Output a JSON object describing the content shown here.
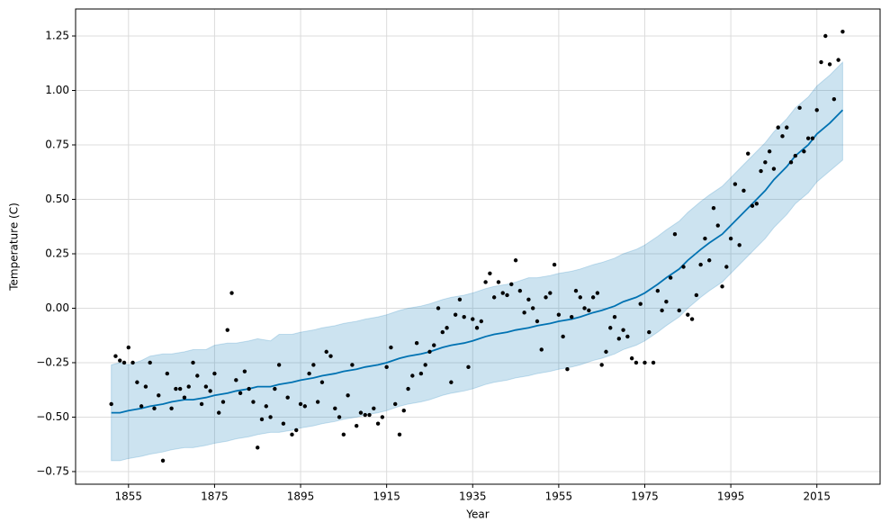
{
  "chart_data": {
    "type": "forecast",
    "xlabel": "Year",
    "ylabel": "Temperature (C)",
    "grid": true,
    "xlim": [
      1842.7,
      2029.7
    ],
    "ylim": [
      -0.808,
      1.374
    ],
    "xticks": [
      1855,
      1875,
      1895,
      1915,
      1935,
      1955,
      1975,
      1995,
      2015
    ],
    "yticks": [
      {
        "value": -0.75,
        "label": "−0.75"
      },
      {
        "value": -0.5,
        "label": "−0.50"
      },
      {
        "value": -0.25,
        "label": "−0.25"
      },
      {
        "value": 0,
        "label": "0.00"
      },
      0.25,
      {
        "value": 0.5,
        "label": "0.50"
      },
      0.75,
      {
        "value": 1,
        "label": "1.00"
      },
      1.25
    ],
    "observed": {
      "color": "#000000",
      "x": [
        1851,
        1852,
        1853,
        1854,
        1855,
        1856,
        1857,
        1858,
        1859,
        1860,
        1861,
        1862,
        1863,
        1864,
        1865,
        1866,
        1867,
        1868,
        1869,
        1870,
        1871,
        1872,
        1873,
        1874,
        1875,
        1876,
        1877,
        1878,
        1879,
        1880,
        1881,
        1882,
        1883,
        1884,
        1885,
        1886,
        1887,
        1888,
        1889,
        1890,
        1891,
        1892,
        1893,
        1894,
        1895,
        1896,
        1897,
        1898,
        1899,
        1900,
        1901,
        1902,
        1903,
        1904,
        1905,
        1906,
        1907,
        1908,
        1909,
        1910,
        1911,
        1912,
        1913,
        1914,
        1915,
        1916,
        1917,
        1918,
        1919,
        1920,
        1921,
        1922,
        1923,
        1924,
        1925,
        1926,
        1927,
        1928,
        1929,
        1930,
        1931,
        1932,
        1933,
        1934,
        1935,
        1936,
        1937,
        1938,
        1939,
        1940,
        1941,
        1942,
        1943,
        1944,
        1945,
        1946,
        1947,
        1948,
        1949,
        1950,
        1951,
        1952,
        1953,
        1954,
        1955,
        1956,
        1957,
        1958,
        1959,
        1960,
        1961,
        1962,
        1963,
        1964,
        1965,
        1966,
        1967,
        1968,
        1969,
        1970,
        1971,
        1972,
        1973,
        1974,
        1975,
        1976,
        1977,
        1978,
        1979,
        1980,
        1981,
        1982,
        1983,
        1984,
        1985,
        1986,
        1987,
        1988,
        1989,
        1990,
        1991,
        1992,
        1993,
        1994,
        1995,
        1996,
        1997,
        1998,
        1999,
        2000,
        2001,
        2002,
        2003,
        2004,
        2005,
        2006,
        2007,
        2008,
        2009,
        2010,
        2011,
        2012,
        2013,
        2014,
        2015,
        2016,
        2017,
        2018,
        2019,
        2020,
        2021
      ],
      "values": [
        -0.44,
        -0.22,
        -0.24,
        -0.25,
        -0.18,
        -0.25,
        -0.34,
        -0.45,
        -0.36,
        -0.25,
        -0.46,
        -0.4,
        -0.7,
        -0.3,
        -0.46,
        -0.37,
        -0.37,
        -0.41,
        -0.36,
        -0.25,
        -0.31,
        -0.44,
        -0.36,
        -0.38,
        -0.3,
        -0.48,
        -0.43,
        -0.1,
        0.07,
        -0.33,
        -0.39,
        -0.29,
        -0.37,
        -0.43,
        -0.64,
        -0.51,
        -0.45,
        -0.5,
        -0.37,
        -0.26,
        -0.53,
        -0.41,
        -0.58,
        -0.56,
        -0.44,
        -0.45,
        -0.3,
        -0.26,
        -0.43,
        -0.34,
        -0.2,
        -0.22,
        -0.46,
        -0.5,
        -0.58,
        -0.4,
        -0.26,
        -0.54,
        -0.48,
        -0.49,
        -0.49,
        -0.46,
        -0.53,
        -0.5,
        -0.27,
        -0.18,
        -0.44,
        -0.58,
        -0.47,
        -0.37,
        -0.31,
        -0.16,
        -0.3,
        -0.26,
        -0.2,
        -0.17,
        0.0,
        -0.11,
        -0.09,
        -0.34,
        -0.03,
        0.04,
        -0.04,
        -0.27,
        -0.05,
        -0.09,
        -0.06,
        0.12,
        0.16,
        0.05,
        0.12,
        0.07,
        0.06,
        0.11,
        0.22,
        0.08,
        -0.02,
        0.04,
        0.0,
        -0.06,
        -0.19,
        0.05,
        0.07,
        0.2,
        -0.03,
        -0.13,
        -0.28,
        -0.04,
        0.08,
        0.05,
        0.0,
        -0.01,
        0.05,
        0.07,
        -0.26,
        -0.2,
        -0.09,
        -0.04,
        -0.14,
        -0.1,
        -0.13,
        -0.23,
        -0.25,
        0.02,
        -0.25,
        -0.11,
        -0.25,
        0.08,
        -0.01,
        0.03,
        0.14,
        0.34,
        -0.01,
        0.19,
        -0.03,
        -0.05,
        0.06,
        0.2,
        0.32,
        0.22,
        0.46,
        0.38,
        0.1,
        0.19,
        0.32,
        0.57,
        0.29,
        0.54,
        0.71,
        0.47,
        0.48,
        0.63,
        0.67,
        0.72,
        0.64,
        0.83,
        0.79,
        0.83,
        0.67,
        0.7,
        0.92,
        0.72,
        0.78,
        0.78,
        0.91,
        1.13,
        1.25,
        1.12,
        0.96,
        1.14,
        1.27
      ]
    },
    "forecast": {
      "color": "#0072b2",
      "x": [
        1851,
        1853,
        1855,
        1858,
        1860,
        1863,
        1865,
        1868,
        1870,
        1873,
        1875,
        1878,
        1880,
        1883,
        1885,
        1888,
        1890,
        1893,
        1895,
        1898,
        1900,
        1903,
        1905,
        1908,
        1910,
        1913,
        1915,
        1918,
        1920,
        1923,
        1925,
        1928,
        1930,
        1933,
        1935,
        1938,
        1940,
        1943,
        1945,
        1948,
        1950,
        1953,
        1955,
        1958,
        1960,
        1963,
        1965,
        1968,
        1970,
        1973,
        1975,
        1978,
        1980,
        1983,
        1985,
        1988,
        1990,
        1993,
        1995,
        1998,
        2000,
        2003,
        2005,
        2008,
        2010,
        2013,
        2015,
        2018,
        2021
      ],
      "values": [
        -0.48,
        -0.48,
        -0.47,
        -0.46,
        -0.45,
        -0.44,
        -0.43,
        -0.42,
        -0.42,
        -0.41,
        -0.4,
        -0.39,
        -0.38,
        -0.37,
        -0.36,
        -0.36,
        -0.35,
        -0.34,
        -0.33,
        -0.32,
        -0.31,
        -0.3,
        -0.29,
        -0.28,
        -0.27,
        -0.26,
        -0.25,
        -0.23,
        -0.22,
        -0.21,
        -0.2,
        -0.18,
        -0.17,
        -0.16,
        -0.15,
        -0.13,
        -0.12,
        -0.11,
        -0.1,
        -0.09,
        -0.08,
        -0.07,
        -0.06,
        -0.05,
        -0.04,
        -0.02,
        -0.01,
        0.01,
        0.03,
        0.05,
        0.07,
        0.11,
        0.14,
        0.18,
        0.22,
        0.27,
        0.3,
        0.34,
        0.38,
        0.44,
        0.48,
        0.54,
        0.59,
        0.65,
        0.7,
        0.75,
        0.8,
        0.85,
        0.91
      ],
      "upper": [
        -0.26,
        -0.25,
        -0.26,
        -0.24,
        -0.22,
        -0.21,
        -0.21,
        -0.2,
        -0.19,
        -0.19,
        -0.17,
        -0.16,
        -0.16,
        -0.15,
        -0.14,
        -0.15,
        -0.12,
        -0.12,
        -0.11,
        -0.1,
        -0.09,
        -0.08,
        -0.07,
        -0.06,
        -0.05,
        -0.04,
        -0.03,
        -0.01,
        0.0,
        0.01,
        0.02,
        0.04,
        0.05,
        0.06,
        0.07,
        0.09,
        0.1,
        0.11,
        0.12,
        0.14,
        0.14,
        0.15,
        0.16,
        0.17,
        0.18,
        0.2,
        0.21,
        0.23,
        0.25,
        0.27,
        0.29,
        0.33,
        0.36,
        0.4,
        0.44,
        0.49,
        0.52,
        0.56,
        0.6,
        0.66,
        0.7,
        0.76,
        0.81,
        0.87,
        0.92,
        0.97,
        1.02,
        1.07,
        1.13
      ],
      "lower": [
        -0.7,
        -0.7,
        -0.69,
        -0.68,
        -0.67,
        -0.66,
        -0.65,
        -0.64,
        -0.64,
        -0.63,
        -0.62,
        -0.61,
        -0.6,
        -0.59,
        -0.58,
        -0.57,
        -0.57,
        -0.56,
        -0.55,
        -0.54,
        -0.53,
        -0.52,
        -0.51,
        -0.5,
        -0.49,
        -0.48,
        -0.47,
        -0.45,
        -0.44,
        -0.43,
        -0.42,
        -0.4,
        -0.39,
        -0.38,
        -0.37,
        -0.35,
        -0.34,
        -0.33,
        -0.32,
        -0.31,
        -0.3,
        -0.29,
        -0.28,
        -0.27,
        -0.26,
        -0.24,
        -0.23,
        -0.21,
        -0.19,
        -0.17,
        -0.15,
        -0.11,
        -0.08,
        -0.04,
        0.0,
        0.05,
        0.08,
        0.12,
        0.16,
        0.22,
        0.26,
        0.32,
        0.37,
        0.43,
        0.48,
        0.53,
        0.58,
        0.63,
        0.68
      ]
    }
  }
}
